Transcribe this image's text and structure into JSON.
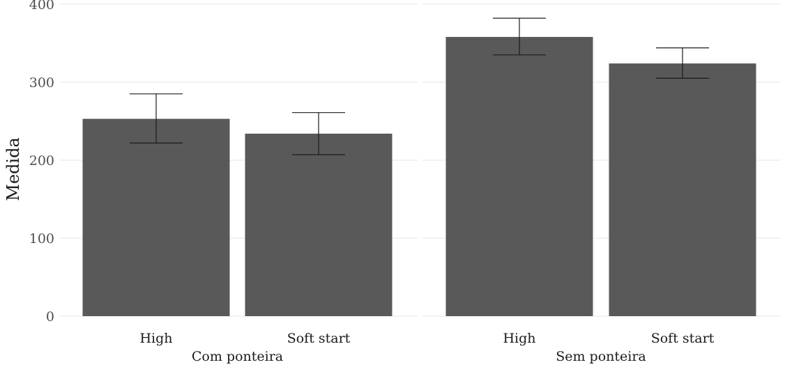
{
  "chart_data": {
    "type": "bar",
    "ylabel": "Medida",
    "xlabel": "",
    "ylim": [
      0,
      400
    ],
    "yticks": [
      0,
      100,
      200,
      300,
      400
    ],
    "grid": true,
    "colors": {
      "bar": "#595959",
      "grid": "#e6e6e6",
      "error": "#1a1a1a"
    },
    "panels": [
      {
        "name": "Com ponteira",
        "categories": [
          "High",
          "Soft start"
        ],
        "values": [
          253,
          234
        ],
        "error_low": [
          222,
          207
        ],
        "error_high": [
          285,
          261
        ]
      },
      {
        "name": "Sem ponteira",
        "categories": [
          "High",
          "Soft start"
        ],
        "values": [
          358,
          324
        ],
        "error_low": [
          335,
          305
        ],
        "error_high": [
          382,
          344
        ]
      }
    ]
  }
}
